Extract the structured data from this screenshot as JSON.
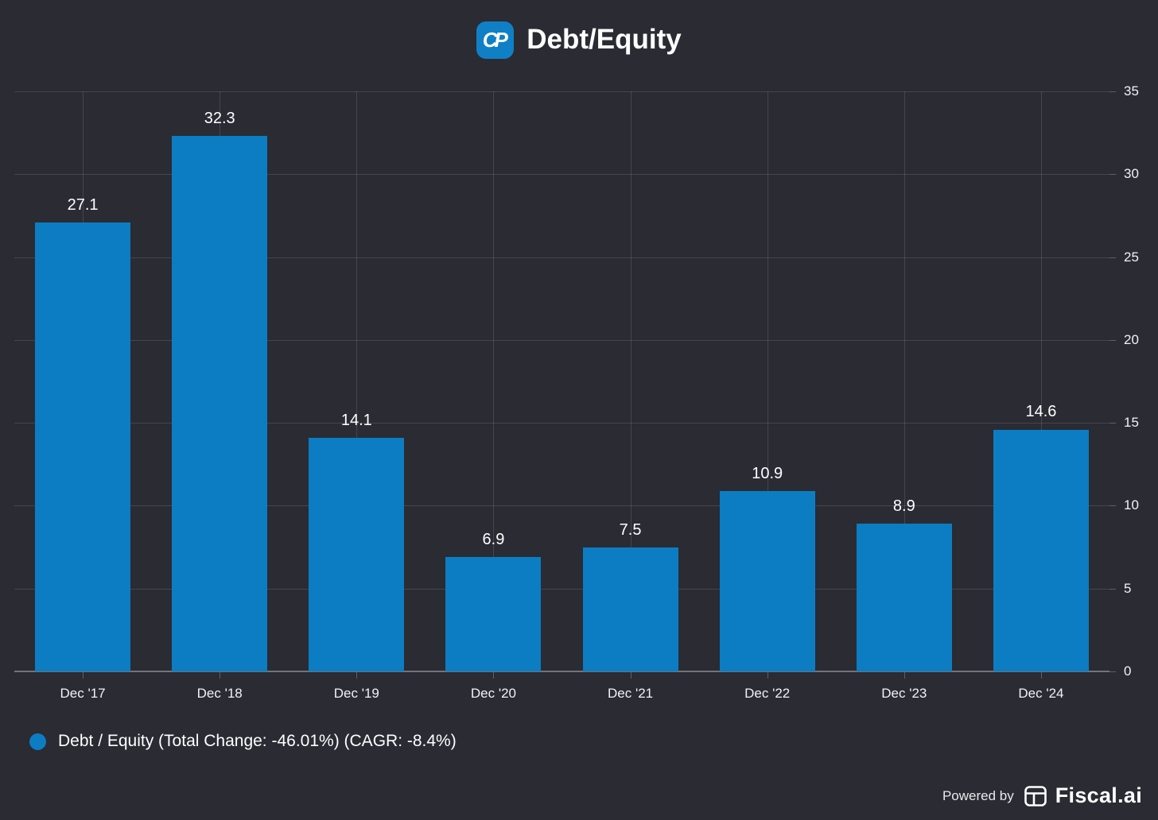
{
  "header": {
    "title": "Debt/Equity",
    "logo_monogram": "CP"
  },
  "chart_data": {
    "type": "bar",
    "title": "Debt/Equity",
    "categories": [
      "Dec '17",
      "Dec '18",
      "Dec '19",
      "Dec '20",
      "Dec '21",
      "Dec '22",
      "Dec '23",
      "Dec '24"
    ],
    "values": [
      27.1,
      32.3,
      14.1,
      6.9,
      7.5,
      10.9,
      8.9,
      14.6
    ],
    "xlabel": "",
    "ylabel": "",
    "ylim": [
      0,
      35
    ],
    "yticks": [
      0,
      5,
      10,
      15,
      20,
      25,
      30,
      35
    ],
    "grid": true,
    "legend_position": "bottom-left",
    "bar_color": "#0c7dc2"
  },
  "legend": {
    "label": "Debt / Equity (Total Change: -46.01%) (CAGR: -8.4%)",
    "marker_color": "#0c7dc2"
  },
  "footer": {
    "powered_by": "Powered by",
    "brand": "Fiscal.ai"
  },
  "colors": {
    "background": "#2a2b33",
    "bar": "#0c7dc2",
    "gridline": "rgba(255,255,255,0.13)",
    "axis_line": "#72737b",
    "text": "#ffffff"
  }
}
